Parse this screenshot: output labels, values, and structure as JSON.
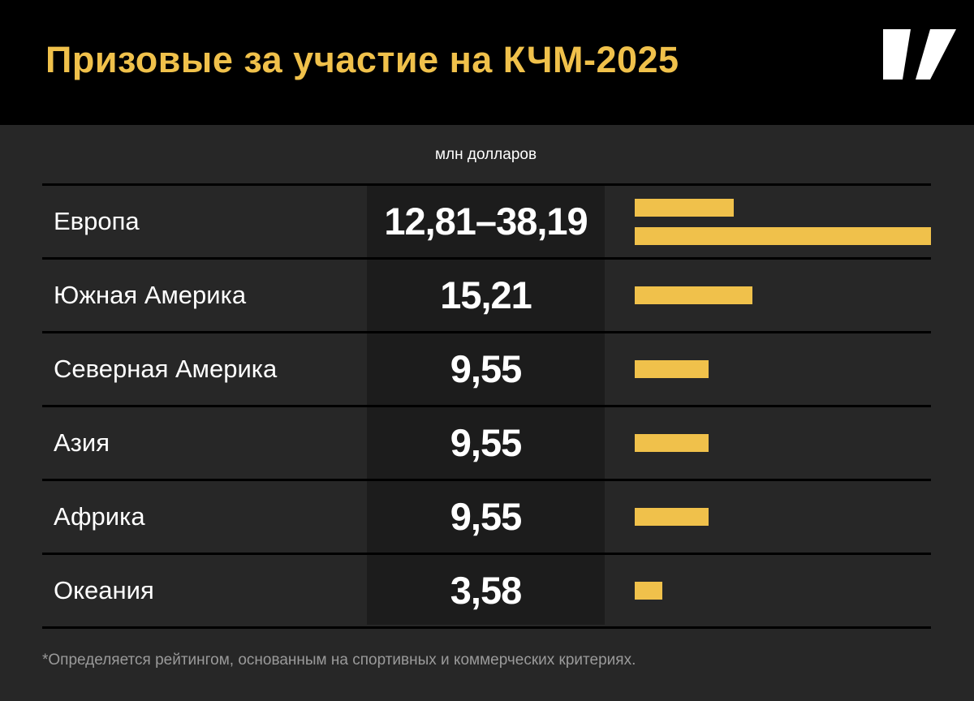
{
  "title": "Призовые за участие на КЧМ-2025",
  "unit_label": "млн долларов",
  "footnote": "*Определяется рейтингом, основанным на спортивных и коммерческих критериях.",
  "colors": {
    "bar": "#f0c14b",
    "title": "#f0c14b"
  },
  "logo": {
    "icon": "brand-logo-icon"
  },
  "chart_data": {
    "type": "bar",
    "orientation": "horizontal",
    "xlim": [
      0,
      38.19
    ],
    "rows": [
      {
        "label": "Европа",
        "display": "12,81–38,19",
        "values": [
          12.81,
          38.19
        ]
      },
      {
        "label": "Южная Америка",
        "display": "15,21",
        "values": [
          15.21
        ]
      },
      {
        "label": "Северная Америка",
        "display": "9,55",
        "values": [
          9.55
        ]
      },
      {
        "label": "Азия",
        "display": "9,55",
        "values": [
          9.55
        ]
      },
      {
        "label": "Африка",
        "display": "9,55",
        "values": [
          9.55
        ]
      },
      {
        "label": "Океания",
        "display": "3,58",
        "values": [
          3.58
        ]
      }
    ]
  }
}
